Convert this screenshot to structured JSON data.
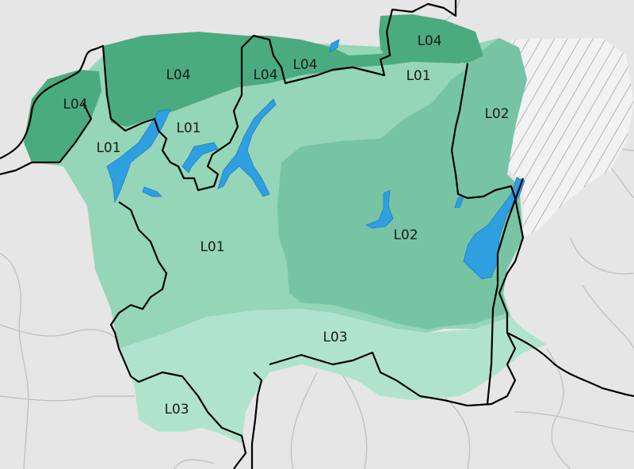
{
  "colors": {
    "background": "#e6e6e6",
    "region_border": "#bdbdbd",
    "L01": "#95d5b8",
    "L02": "#77c4a4",
    "L03": "#b0e3cd",
    "L04": "#4bab80",
    "lake": "#2f9fe0",
    "outer_border": "#000000",
    "hatch": "#9a9a9a"
  },
  "zones": [
    {
      "id": "L04",
      "label": "L04"
    },
    {
      "id": "L04",
      "label": "L04"
    },
    {
      "id": "L04",
      "label": "L04"
    },
    {
      "id": "L04",
      "label": "L04"
    },
    {
      "id": "L04",
      "label": "L04"
    },
    {
      "id": "L01",
      "label": "L01"
    },
    {
      "id": "L01",
      "label": "L01"
    },
    {
      "id": "L01",
      "label": "L01"
    },
    {
      "id": "L01",
      "label": "L01"
    },
    {
      "id": "L02",
      "label": "L02"
    },
    {
      "id": "L02",
      "label": "L02"
    },
    {
      "id": "L03",
      "label": "L03"
    },
    {
      "id": "L03",
      "label": "L03"
    }
  ]
}
